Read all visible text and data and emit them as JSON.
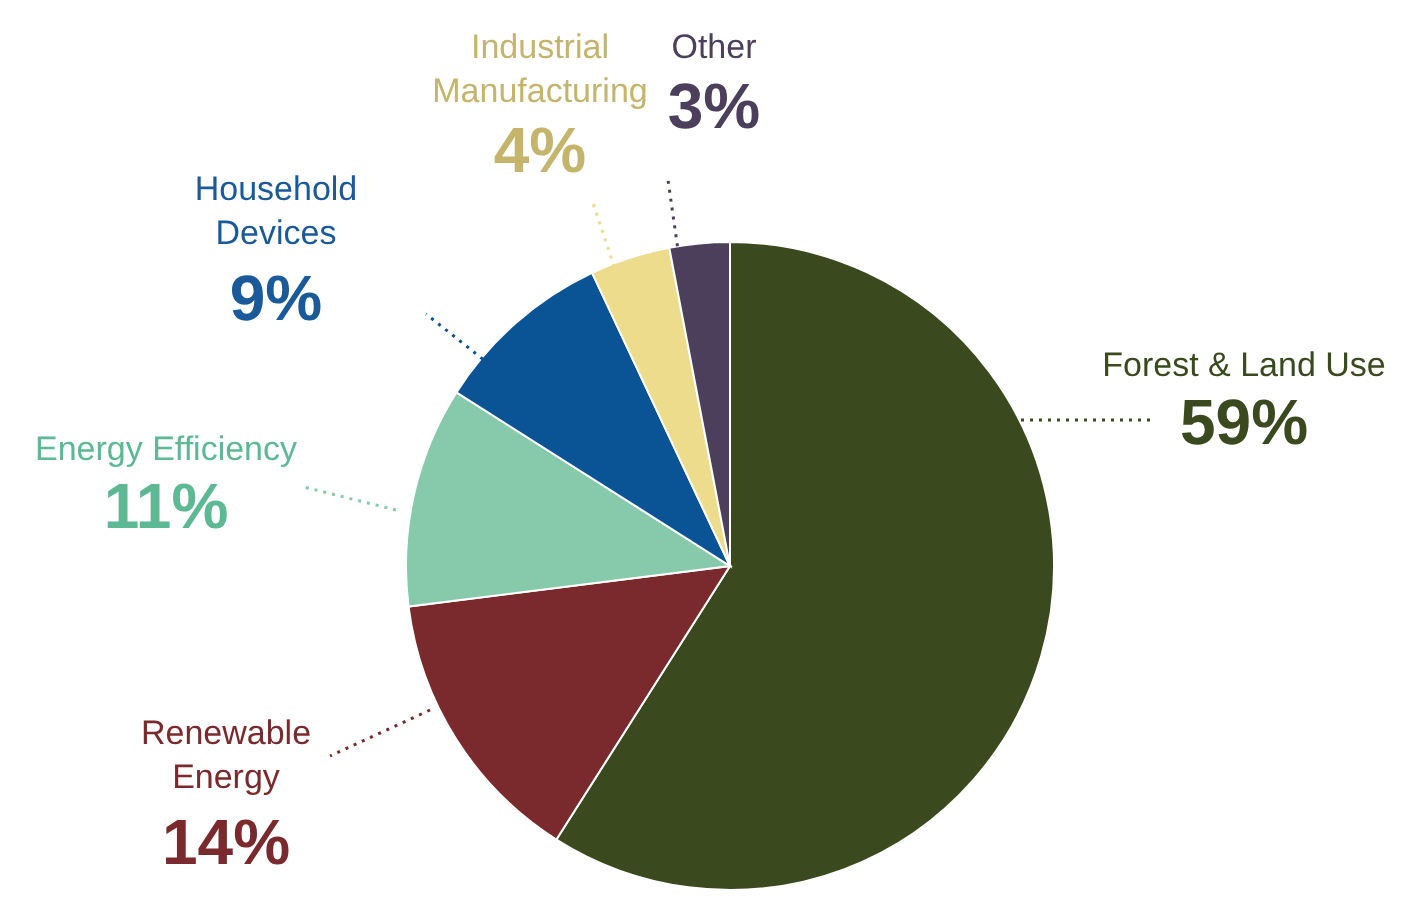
{
  "chart_data": {
    "type": "pie",
    "categories": [
      "Forest & Land Use",
      "Renewable Energy",
      "Energy Efficiency",
      "Household Devices",
      "Industrial Manufacturing",
      "Other"
    ],
    "values": [
      59,
      14,
      11,
      9,
      4,
      3
    ],
    "value_labels": [
      "59%",
      "14%",
      "11%",
      "9%",
      "4%",
      "3%"
    ],
    "colors": [
      "#3b4a1e",
      "#7a2a2c",
      "#86c9ab",
      "#0a5495",
      "#ecdc8c",
      "#4b3f5c"
    ]
  }
}
